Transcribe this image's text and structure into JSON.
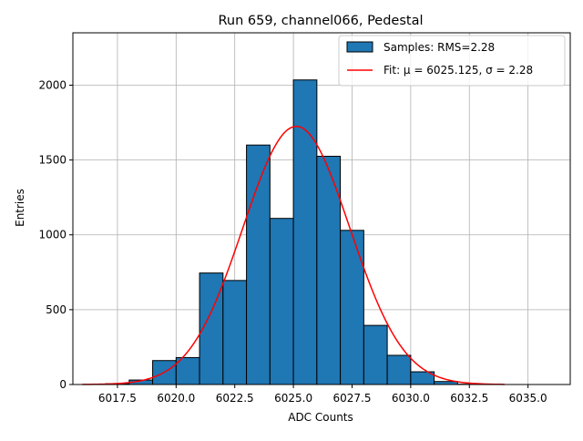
{
  "chart_data": {
    "type": "bar",
    "title": "Run 659, channel066, Pedestal",
    "xlabel": "ADC Counts",
    "ylabel": "Entries",
    "xlim": [
      6015.6,
      6036.8
    ],
    "ylim": [
      0,
      2350
    ],
    "grid": true,
    "legend_position": "top-right",
    "x_ticks": [
      6017.5,
      6020.0,
      6022.5,
      6025.0,
      6027.5,
      6030.0,
      6032.5,
      6035.0
    ],
    "x_tick_labels": [
      "6017.5",
      "6020.0",
      "6022.5",
      "6025.0",
      "6027.5",
      "6030.0",
      "6032.5",
      "6035.0"
    ],
    "y_ticks": [
      0,
      500,
      1000,
      1500,
      2000
    ],
    "y_tick_labels": [
      "0",
      "500",
      "1000",
      "1500",
      "2000"
    ],
    "bin_edges": [
      6017,
      6018,
      6019,
      6020,
      6021,
      6022,
      6023,
      6024,
      6025,
      6026,
      6027,
      6028,
      6029,
      6030,
      6031,
      6032,
      6033
    ],
    "series": [
      {
        "name": "Samples: RMS=2.28",
        "type": "histogram",
        "color": "#1f77b4",
        "edge_color": "#000000",
        "values": [
          5,
          30,
          160,
          180,
          745,
          695,
          1600,
          1110,
          2035,
          1525,
          1030,
          395,
          195,
          85,
          20,
          2
        ]
      },
      {
        "name": "Fit: μ = 6025.125, σ = 2.28",
        "type": "line",
        "color": "#ff0000",
        "mu": 6025.125,
        "sigma": 2.28,
        "amplitude": 1725,
        "x_range": [
          6016.0,
          6034.0
        ]
      }
    ]
  }
}
